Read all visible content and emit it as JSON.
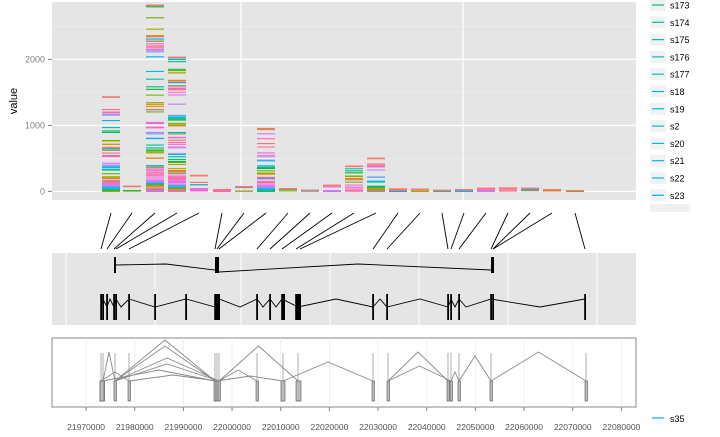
{
  "chart_data": [
    {
      "type": "bar",
      "ylabel": "value",
      "xlabel": "",
      "title": "",
      "ylim": [
        -130,
        2870
      ],
      "yticks": [
        0,
        1000,
        2000
      ],
      "ytick_labels": [
        "0",
        "1000",
        "2000"
      ],
      "grid": true,
      "bars": [
        {
          "x": 111,
          "max": 1430
        },
        {
          "x": 132,
          "max": 75
        },
        {
          "x": 155,
          "max": 2820
        },
        {
          "x": 177,
          "max": 2030
        },
        {
          "x": 199,
          "max": 240
        },
        {
          "x": 222,
          "max": 25
        },
        {
          "x": 244,
          "max": 70
        },
        {
          "x": 266,
          "max": 950
        },
        {
          "x": 288,
          "max": 40
        },
        {
          "x": 310,
          "max": 15
        },
        {
          "x": 332,
          "max": 90
        },
        {
          "x": 354,
          "max": 380
        },
        {
          "x": 376,
          "max": 500
        },
        {
          "x": 398,
          "max": 35
        },
        {
          "x": 420,
          "max": 30
        },
        {
          "x": 442,
          "max": 15
        },
        {
          "x": 464,
          "max": 25
        },
        {
          "x": 486,
          "max": 45
        },
        {
          "x": 508,
          "max": 50
        },
        {
          "x": 530,
          "max": 45
        },
        {
          "x": 552,
          "max": 25
        },
        {
          "x": 575,
          "max": 10
        }
      ],
      "legend_position": "right",
      "legend": [
        "s173",
        "s174",
        "s175",
        "s176",
        "s177",
        "s18",
        "s19",
        "s2",
        "s20",
        "s21",
        "s22",
        "s23"
      ],
      "legend_colors": [
        "#00BA8F",
        "#00BD9C",
        "#00BEAA",
        "#00BFB7",
        "#00BFC4",
        "#00B0F6",
        "#00B4EF",
        "#00C0B8",
        "#00BCD8",
        "#00B8E5",
        "#00B4F0",
        "#00AEF8"
      ]
    },
    {
      "type": "line",
      "title": "",
      "xlim": [
        21963000,
        22083000
      ],
      "xticks": [
        21970000,
        21980000,
        21990000,
        22000000,
        22010000,
        22020000,
        22030000,
        22040000,
        22050000,
        22060000,
        22070000,
        22080000
      ],
      "xtick_labels": [
        "21970000",
        "21980000",
        "21990000",
        "22000000",
        "22010000",
        "22020000",
        "22030000",
        "22040000",
        "22050000",
        "22060000",
        "22070000",
        "22080000"
      ],
      "bottom_legend": [
        "s35"
      ]
    }
  ]
}
